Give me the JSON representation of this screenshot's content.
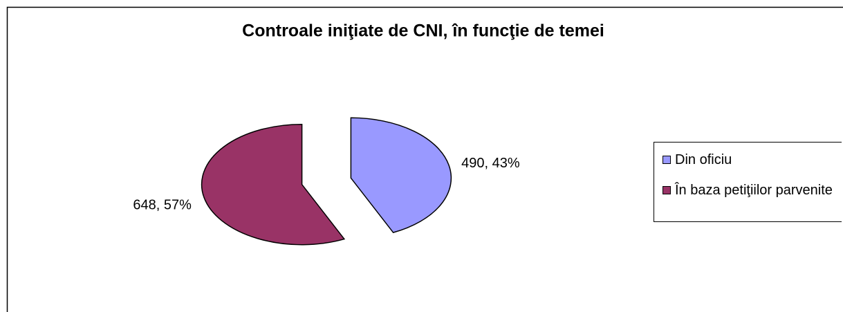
{
  "chart_data": {
    "type": "pie",
    "title": "Controale iniţiate de CNI, în funcţie de temei",
    "categories": [
      "Din oficiu",
      "În baza petiţiilor parvenite"
    ],
    "values": [
      490,
      648
    ],
    "value_labels": [
      "490, 43%",
      "648, 57%"
    ],
    "colors": [
      "#9999ff",
      "#993366"
    ],
    "legend": "right"
  }
}
